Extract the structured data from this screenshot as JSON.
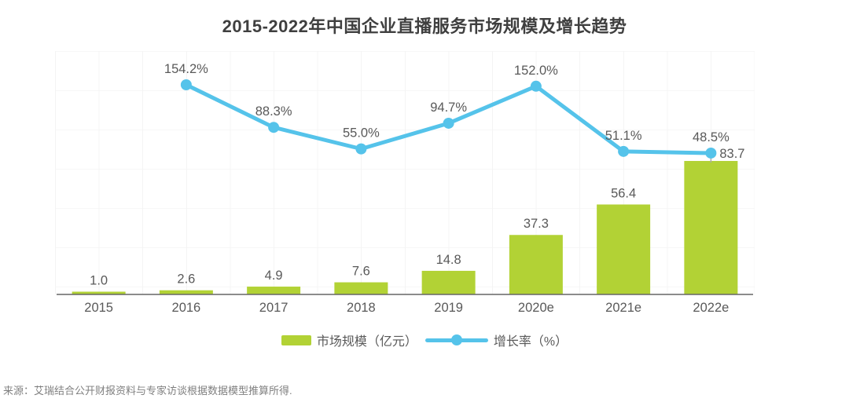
{
  "title": "2015-2022年中国企业直播服务市场规模及增长趋势",
  "source_note": "来源：艾瑞结合公开财报资料与专家访谈根据数据模型推算所得.",
  "legend": {
    "items": [
      {
        "label": "市场规模（亿元）",
        "series": "bar"
      },
      {
        "label": "增长率（%）",
        "series": "line"
      }
    ]
  },
  "colors": {
    "page_bg": "#ffffff",
    "bar": "#b2d235",
    "line": "#55c3ea",
    "title_text": "#3f3f3f",
    "label_text": "#595959",
    "axis": "#666666",
    "connector": "#aaaaaa",
    "source_text": "#808080"
  },
  "chart_data": {
    "type": "bar",
    "subtype": "bar+line combo",
    "title": "2015-2022年中国企业直播服务市场规模及增长趋势",
    "categories": [
      "2015",
      "2016",
      "2017",
      "2018",
      "2019",
      "2020e",
      "2021e",
      "2022e"
    ],
    "series": [
      {
        "name": "市场规模（亿元）",
        "type": "bar",
        "values": [
          1.0,
          2.6,
          4.9,
          7.6,
          14.8,
          37.3,
          56.4,
          83.7
        ],
        "labels": [
          "1.0",
          "2.6",
          "4.9",
          "7.6",
          "14.8",
          "37.3",
          "56.4",
          "83.7"
        ]
      },
      {
        "name": "增长率（%）",
        "type": "line",
        "values": [
          null,
          154.2,
          88.3,
          55.0,
          94.7,
          152.0,
          51.1,
          48.5
        ],
        "labels": [
          null,
          "154.2%",
          "88.3%",
          "55.0%",
          "94.7%",
          "152.0%",
          "51.1%",
          "48.5%"
        ]
      }
    ],
    "xlabel": "",
    "ylabel": "",
    "y_axis_visible": false,
    "grid": "very faint",
    "legend_position": "bottom",
    "data_labels": "shown above bars and above line points"
  }
}
